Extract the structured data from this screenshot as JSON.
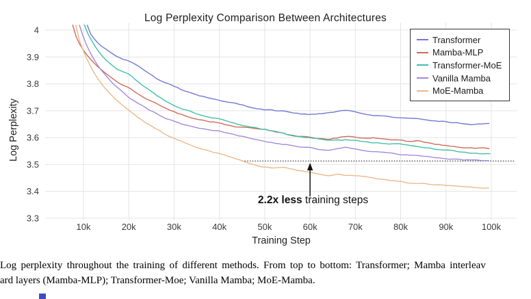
{
  "chart_data": {
    "type": "line",
    "title": "Log Perplexity Comparison Between Architectures",
    "xlabel": "Training Step",
    "ylabel": "Log Perplexity",
    "ylim": [
      3.3,
      4.0
    ],
    "xlim_steps": [
      1500,
      105600
    ],
    "grid": true,
    "legend_position": "upper right",
    "xticks": [
      {
        "step": 10,
        "label": "10k"
      },
      {
        "step": 20,
        "label": "20k"
      },
      {
        "step": 30,
        "label": "30k"
      },
      {
        "step": 40,
        "label": "40k"
      },
      {
        "step": 50,
        "label": "50k"
      },
      {
        "step": 60,
        "label": "60k"
      },
      {
        "step": 70,
        "label": "70k"
      },
      {
        "step": 80,
        "label": "80k"
      },
      {
        "step": 90,
        "label": "90k"
      },
      {
        "step": 100,
        "label": "100k"
      }
    ],
    "yticks": [
      {
        "value": 4.0,
        "label": "4"
      },
      {
        "value": 3.9,
        "label": "3.9"
      },
      {
        "value": 3.8,
        "label": "3.8"
      },
      {
        "value": 3.7,
        "label": "3.7"
      },
      {
        "value": 3.6,
        "label": "3.6"
      },
      {
        "value": 3.5,
        "label": "3.5"
      },
      {
        "value": 3.4,
        "label": "3.4"
      },
      {
        "value": 3.3,
        "label": "3.3"
      }
    ],
    "series": [
      {
        "name": "Transformer",
        "color": "#7277d5",
        "points_step_k_vs_logppl": [
          [
            10.8,
            4.02
          ],
          [
            11,
            4.0
          ],
          [
            12,
            3.975
          ],
          [
            13,
            3.955
          ],
          [
            14,
            3.94
          ],
          [
            15,
            3.928
          ],
          [
            16,
            3.916
          ],
          [
            17,
            3.906
          ],
          [
            18,
            3.898
          ],
          [
            19,
            3.891
          ],
          [
            20,
            3.886
          ],
          [
            22,
            3.868
          ],
          [
            24,
            3.845
          ],
          [
            26,
            3.822
          ],
          [
            28,
            3.806
          ],
          [
            30,
            3.792
          ],
          [
            32,
            3.776
          ],
          [
            34,
            3.765
          ],
          [
            36,
            3.755
          ],
          [
            38,
            3.746
          ],
          [
            40,
            3.739
          ],
          [
            42,
            3.731
          ],
          [
            44,
            3.725
          ],
          [
            46,
            3.717
          ],
          [
            48,
            3.71
          ],
          [
            50,
            3.705
          ],
          [
            52,
            3.701
          ],
          [
            54,
            3.699
          ],
          [
            56,
            3.693
          ],
          [
            58,
            3.688
          ],
          [
            60,
            3.686
          ],
          [
            62,
            3.689
          ],
          [
            64,
            3.692
          ],
          [
            66,
            3.697
          ],
          [
            68,
            3.7
          ],
          [
            70,
            3.697
          ],
          [
            72,
            3.69
          ],
          [
            74,
            3.684
          ],
          [
            76,
            3.68
          ],
          [
            78,
            3.677
          ],
          [
            80,
            3.674
          ],
          [
            82,
            3.671
          ],
          [
            84,
            3.669
          ],
          [
            86,
            3.665
          ],
          [
            88,
            3.662
          ],
          [
            90,
            3.66
          ],
          [
            92,
            3.656
          ],
          [
            94,
            3.652
          ],
          [
            96,
            3.65
          ],
          [
            98,
            3.652
          ],
          [
            100,
            3.655
          ]
        ]
      },
      {
        "name": "Mamba-MLP",
        "color": "#cf6b58",
        "points_step_k_vs_logppl": [
          [
            7.6,
            4.02
          ],
          [
            8,
            3.99
          ],
          [
            9,
            3.952
          ],
          [
            10,
            3.925
          ],
          [
            11,
            3.902
          ],
          [
            12,
            3.883
          ],
          [
            13,
            3.867
          ],
          [
            14,
            3.852
          ],
          [
            15,
            3.838
          ],
          [
            16,
            3.825
          ],
          [
            17,
            3.813
          ],
          [
            18,
            3.802
          ],
          [
            19,
            3.793
          ],
          [
            20,
            3.785
          ],
          [
            22,
            3.764
          ],
          [
            24,
            3.744
          ],
          [
            26,
            3.726
          ],
          [
            28,
            3.709
          ],
          [
            30,
            3.695
          ],
          [
            32,
            3.684
          ],
          [
            34,
            3.674
          ],
          [
            36,
            3.666
          ],
          [
            38,
            3.66
          ],
          [
            40,
            3.655
          ],
          [
            42,
            3.646
          ],
          [
            44,
            3.64
          ],
          [
            46,
            3.636
          ],
          [
            48,
            3.633
          ],
          [
            50,
            3.63
          ],
          [
            52,
            3.624
          ],
          [
            54,
            3.616
          ],
          [
            56,
            3.609
          ],
          [
            58,
            3.604
          ],
          [
            60,
            3.6
          ],
          [
            62,
            3.597
          ],
          [
            64,
            3.594
          ],
          [
            66,
            3.599
          ],
          [
            68,
            3.605
          ],
          [
            70,
            3.601
          ],
          [
            72,
            3.597
          ],
          [
            74,
            3.6
          ],
          [
            76,
            3.596
          ],
          [
            78,
            3.593
          ],
          [
            80,
            3.59
          ],
          [
            82,
            3.585
          ],
          [
            84,
            3.589
          ],
          [
            86,
            3.581
          ],
          [
            88,
            3.575
          ],
          [
            90,
            3.57
          ],
          [
            92,
            3.567
          ],
          [
            94,
            3.564
          ],
          [
            96,
            3.561
          ],
          [
            98,
            3.562
          ],
          [
            100,
            3.56
          ]
        ]
      },
      {
        "name": "Transformer-MoE",
        "color": "#3fc0a7",
        "points_step_k_vs_logppl": [
          [
            10.2,
            4.02
          ],
          [
            10.5,
            4.0
          ],
          [
            11,
            3.985
          ],
          [
            12,
            3.955
          ],
          [
            13,
            3.928
          ],
          [
            14,
            3.906
          ],
          [
            15,
            3.888
          ],
          [
            16,
            3.873
          ],
          [
            17,
            3.86
          ],
          [
            18,
            3.85
          ],
          [
            19,
            3.842
          ],
          [
            20,
            3.835
          ],
          [
            22,
            3.809
          ],
          [
            24,
            3.784
          ],
          [
            26,
            3.759
          ],
          [
            28,
            3.738
          ],
          [
            30,
            3.72
          ],
          [
            32,
            3.706
          ],
          [
            34,
            3.695
          ],
          [
            36,
            3.685
          ],
          [
            38,
            3.676
          ],
          [
            40,
            3.669
          ],
          [
            42,
            3.659
          ],
          [
            44,
            3.65
          ],
          [
            46,
            3.642
          ],
          [
            48,
            3.636
          ],
          [
            50,
            3.631
          ],
          [
            52,
            3.624
          ],
          [
            54,
            3.615
          ],
          [
            56,
            3.607
          ],
          [
            58,
            3.601
          ],
          [
            60,
            3.598
          ],
          [
            62,
            3.594
          ],
          [
            64,
            3.591
          ],
          [
            66,
            3.59
          ],
          [
            68,
            3.592
          ],
          [
            70,
            3.589
          ],
          [
            72,
            3.585
          ],
          [
            74,
            3.581
          ],
          [
            76,
            3.578
          ],
          [
            78,
            3.576
          ],
          [
            80,
            3.578
          ],
          [
            82,
            3.571
          ],
          [
            84,
            3.566
          ],
          [
            86,
            3.561
          ],
          [
            88,
            3.557
          ],
          [
            90,
            3.554
          ],
          [
            92,
            3.549
          ],
          [
            94,
            3.545
          ],
          [
            96,
            3.542
          ],
          [
            98,
            3.541
          ],
          [
            100,
            3.54
          ]
        ]
      },
      {
        "name": "Vanilla Mamba",
        "color": "#a18bd9",
        "points_step_k_vs_logppl": [
          [
            9.1,
            4.02
          ],
          [
            9.5,
            4.0
          ],
          [
            10,
            3.972
          ],
          [
            11,
            3.932
          ],
          [
            12,
            3.9
          ],
          [
            13,
            3.873
          ],
          [
            14,
            3.85
          ],
          [
            15,
            3.83
          ],
          [
            16,
            3.811
          ],
          [
            17,
            3.795
          ],
          [
            18,
            3.779
          ],
          [
            19,
            3.764
          ],
          [
            20,
            3.75
          ],
          [
            22,
            3.728
          ],
          [
            24,
            3.707
          ],
          [
            26,
            3.689
          ],
          [
            28,
            3.674
          ],
          [
            30,
            3.66
          ],
          [
            32,
            3.649
          ],
          [
            34,
            3.64
          ],
          [
            36,
            3.633
          ],
          [
            38,
            3.628
          ],
          [
            40,
            3.625
          ],
          [
            42,
            3.616
          ],
          [
            44,
            3.609
          ],
          [
            46,
            3.601
          ],
          [
            48,
            3.594
          ],
          [
            50,
            3.588
          ],
          [
            52,
            3.581
          ],
          [
            54,
            3.576
          ],
          [
            56,
            3.571
          ],
          [
            58,
            3.566
          ],
          [
            60,
            3.562
          ],
          [
            62,
            3.557
          ],
          [
            64,
            3.554
          ],
          [
            66,
            3.559
          ],
          [
            68,
            3.564
          ],
          [
            70,
            3.557
          ],
          [
            72,
            3.551
          ],
          [
            74,
            3.548
          ],
          [
            76,
            3.545
          ],
          [
            78,
            3.541
          ],
          [
            80,
            3.537
          ],
          [
            82,
            3.535
          ],
          [
            84,
            3.532
          ],
          [
            86,
            3.529
          ],
          [
            88,
            3.525
          ],
          [
            90,
            3.522
          ],
          [
            92,
            3.519
          ],
          [
            94,
            3.517
          ],
          [
            96,
            3.516
          ],
          [
            98,
            3.515
          ],
          [
            100,
            3.515
          ]
        ]
      },
      {
        "name": "MoE-Mamba",
        "color": "#ebb98a",
        "points_step_k_vs_logppl": [
          [
            8.3,
            4.02
          ],
          [
            8.5,
            4.0
          ],
          [
            9,
            3.967
          ],
          [
            10,
            3.922
          ],
          [
            11,
            3.884
          ],
          [
            12,
            3.851
          ],
          [
            13,
            3.824
          ],
          [
            14,
            3.8
          ],
          [
            15,
            3.779
          ],
          [
            16,
            3.761
          ],
          [
            17,
            3.744
          ],
          [
            18,
            3.729
          ],
          [
            19,
            3.714
          ],
          [
            20,
            3.7
          ],
          [
            22,
            3.675
          ],
          [
            24,
            3.652
          ],
          [
            26,
            3.632
          ],
          [
            28,
            3.614
          ],
          [
            30,
            3.597
          ],
          [
            32,
            3.583
          ],
          [
            34,
            3.57
          ],
          [
            36,
            3.559
          ],
          [
            38,
            3.549
          ],
          [
            40,
            3.54
          ],
          [
            42,
            3.529
          ],
          [
            44,
            3.519
          ],
          [
            46,
            3.509
          ],
          [
            48,
            3.499
          ],
          [
            50,
            3.49
          ],
          [
            52,
            3.487
          ],
          [
            54,
            3.49
          ],
          [
            56,
            3.482
          ],
          [
            58,
            3.475
          ],
          [
            60,
            3.47
          ],
          [
            62,
            3.464
          ],
          [
            64,
            3.459
          ],
          [
            66,
            3.464
          ],
          [
            68,
            3.459
          ],
          [
            70,
            3.457
          ],
          [
            72,
            3.454
          ],
          [
            74,
            3.449
          ],
          [
            76,
            3.444
          ],
          [
            78,
            3.439
          ],
          [
            80,
            3.436
          ],
          [
            82,
            3.432
          ],
          [
            84,
            3.43
          ],
          [
            86,
            3.428
          ],
          [
            88,
            3.425
          ],
          [
            90,
            3.423
          ],
          [
            92,
            3.419
          ],
          [
            94,
            3.417
          ],
          [
            96,
            3.415
          ],
          [
            98,
            3.413
          ],
          [
            100,
            3.414
          ]
        ]
      }
    ],
    "annotation": {
      "dotted_line_y": 3.513,
      "dotted_line_x_start_step_k": 45,
      "arrow_at_step_k": 60,
      "label_bold": "2.2x less",
      "label_rest": " training steps"
    }
  },
  "caption": {
    "line1": "Log perplexity throughout the training of different methods. From top to bottom: Transformer; Mamba interleav",
    "line2": "ard layers (Mamba-MLP); Transformer-Moe; Vanilla Mamba; MoE-Mamba."
  }
}
